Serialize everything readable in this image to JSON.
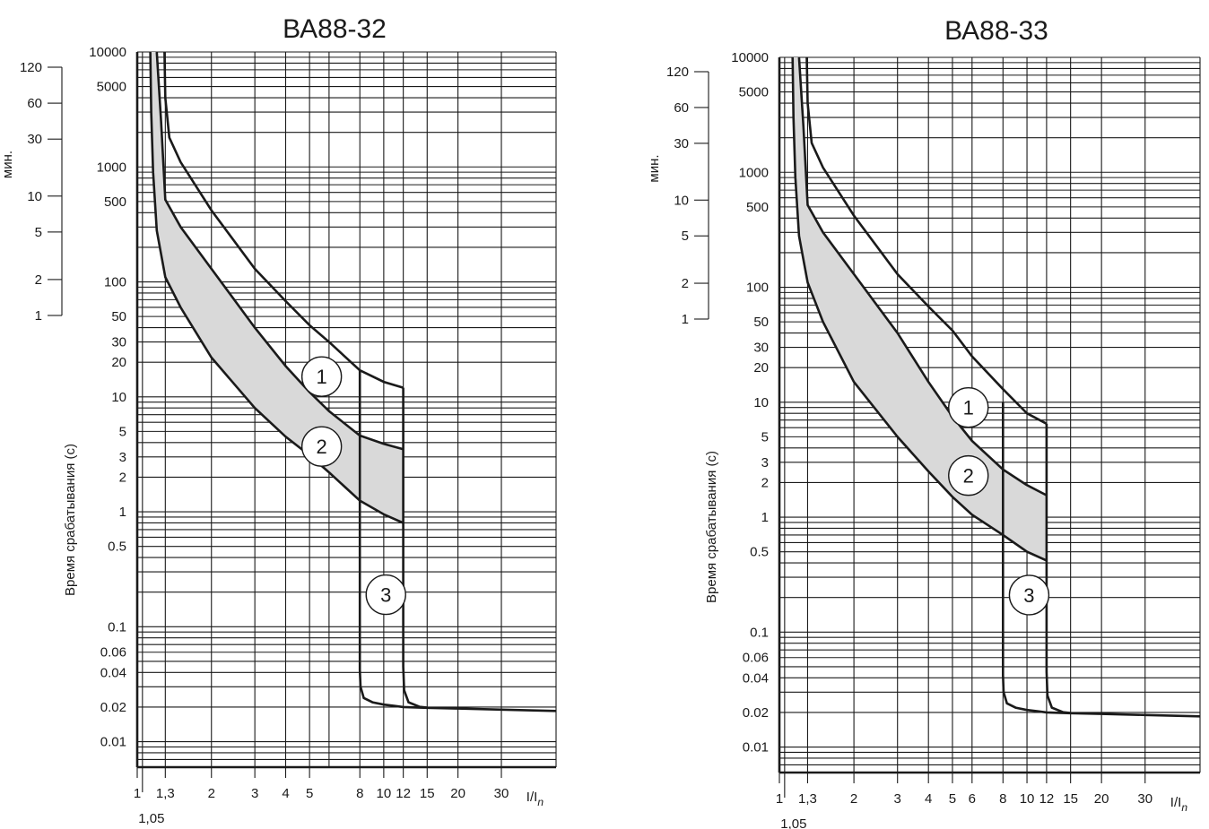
{
  "chart_data": [
    {
      "type": "line",
      "title": "ВА88-32",
      "ylabel": "Время срабатывания (с)",
      "xlabel": "I/I",
      "xlabel_subscript": "n",
      "x_scale": "log",
      "y_scale": "log",
      "xlim": [
        1,
        50
      ],
      "ylim": [
        0.006,
        10000
      ],
      "x_ticks": [
        {
          "value": 1,
          "label": "1"
        },
        {
          "value": 1.3,
          "label": "1,3"
        },
        {
          "value": 2,
          "label": "2"
        },
        {
          "value": 3,
          "label": "3"
        },
        {
          "value": 4,
          "label": "4"
        },
        {
          "value": 5,
          "label": "5"
        },
        {
          "value": 8,
          "label": "8"
        },
        {
          "value": 10,
          "label": "10"
        },
        {
          "value": 12,
          "label": "12"
        },
        {
          "value": 15,
          "label": "15"
        },
        {
          "value": 20,
          "label": "20"
        },
        {
          "value": 30,
          "label": "30"
        }
      ],
      "x_extra_tick": {
        "value": 1.05,
        "label": "1,05"
      },
      "y_ticks": [
        {
          "value": 10000,
          "label": "10000"
        },
        {
          "value": 5000,
          "label": "5000"
        },
        {
          "value": 1000,
          "label": "1000"
        },
        {
          "value": 500,
          "label": "500"
        },
        {
          "value": 100,
          "label": "100"
        },
        {
          "value": 50,
          "label": "50"
        },
        {
          "value": 30,
          "label": "30"
        },
        {
          "value": 20,
          "label": "20"
        },
        {
          "value": 10,
          "label": "10"
        },
        {
          "value": 5,
          "label": "5"
        },
        {
          "value": 3,
          "label": "3"
        },
        {
          "value": 2,
          "label": "2"
        },
        {
          "value": 1,
          "label": "1"
        },
        {
          "value": 0.5,
          "label": "0.5"
        },
        {
          "value": 0.1,
          "label": "0.1"
        },
        {
          "value": 0.06,
          "label": "0.06"
        },
        {
          "value": 0.04,
          "label": "0.04"
        },
        {
          "value": 0.02,
          "label": "0.02"
        },
        {
          "value": 0.01,
          "label": "0.01"
        }
      ],
      "minutes_axis": {
        "label": "мин.",
        "ticks": [
          {
            "minutes": 120,
            "label": "120"
          },
          {
            "minutes": 60,
            "label": "60"
          },
          {
            "minutes": 30,
            "label": "30"
          },
          {
            "minutes": 10,
            "label": "10"
          },
          {
            "minutes": 5,
            "label": "5"
          },
          {
            "minutes": 2,
            "label": "2"
          },
          {
            "minutes": 1,
            "label": "1"
          }
        ]
      },
      "grid": true,
      "series": [
        {
          "label": "1",
          "x": [
            1.29,
            1.3,
            1.35,
            1.5,
            2,
            3,
            4,
            5,
            6,
            8,
            10,
            12
          ],
          "y": [
            10000,
            4000,
            1800,
            1100,
            420,
            130,
            68,
            42,
            30,
            17,
            13.5,
            12
          ]
        },
        {
          "label": "2",
          "x": [
            1.2,
            1.25,
            1.3,
            1.5,
            2,
            3,
            4,
            5,
            6,
            8,
            10,
            12
          ],
          "y": [
            10000,
            2500,
            520,
            300,
            130,
            40,
            18.5,
            11,
            7.5,
            4.6,
            3.9,
            3.5
          ]
        },
        {
          "label": "3",
          "x": [
            1.13,
            1.14,
            1.16,
            1.2,
            1.3,
            1.5,
            2,
            3,
            4,
            5,
            6,
            8,
            10,
            12
          ],
          "y": [
            10000,
            3000,
            900,
            280,
            110,
            60,
            22,
            8,
            4.5,
            3.1,
            2.2,
            1.25,
            0.95,
            0.8
          ]
        },
        {
          "label": "instant-8",
          "x": [
            8,
            8,
            8.05,
            8.3,
            9,
            10,
            11,
            12,
            15,
            20,
            30,
            50
          ],
          "y": [
            17,
            0.042,
            0.03,
            0.024,
            0.022,
            0.021,
            0.0205,
            0.02,
            0.0197,
            0.0194,
            0.019,
            0.0185
          ]
        },
        {
          "label": "instant-12",
          "x": [
            12,
            12,
            12.1,
            12.6,
            14,
            15
          ],
          "y": [
            12,
            0.045,
            0.028,
            0.022,
            0.0201,
            0.0198
          ]
        }
      ],
      "shaded_band": "between series 2 and series 3",
      "annotations": [
        {
          "text": "1",
          "x": 5.6,
          "y": 15
        },
        {
          "text": "2",
          "x": 5.6,
          "y": 3.7
        },
        {
          "text": "3",
          "x": 10.2,
          "y": 0.19
        }
      ]
    },
    {
      "type": "line",
      "title": "ВА88-33",
      "ylabel": "Время срабатывания (с)",
      "xlabel": "I/I",
      "xlabel_subscript": "n",
      "x_scale": "log",
      "y_scale": "log",
      "xlim": [
        1,
        50
      ],
      "ylim": [
        0.006,
        10000
      ],
      "x_ticks": [
        {
          "value": 1,
          "label": "1"
        },
        {
          "value": 1.3,
          "label": "1,3"
        },
        {
          "value": 2,
          "label": "2"
        },
        {
          "value": 3,
          "label": "3"
        },
        {
          "value": 4,
          "label": "4"
        },
        {
          "value": 5,
          "label": "5"
        },
        {
          "value": 6,
          "label": "6"
        },
        {
          "value": 8,
          "label": "8"
        },
        {
          "value": 10,
          "label": "10"
        },
        {
          "value": 12,
          "label": "12"
        },
        {
          "value": 15,
          "label": "15"
        },
        {
          "value": 20,
          "label": "20"
        },
        {
          "value": 30,
          "label": "30"
        }
      ],
      "x_extra_tick": {
        "value": 1.05,
        "label": "1,05"
      },
      "y_ticks": [
        {
          "value": 10000,
          "label": "10000"
        },
        {
          "value": 5000,
          "label": "5000"
        },
        {
          "value": 1000,
          "label": "1000"
        },
        {
          "value": 500,
          "label": "500"
        },
        {
          "value": 100,
          "label": "100"
        },
        {
          "value": 50,
          "label": "50"
        },
        {
          "value": 30,
          "label": "30"
        },
        {
          "value": 20,
          "label": "20"
        },
        {
          "value": 10,
          "label": "10"
        },
        {
          "value": 5,
          "label": "5"
        },
        {
          "value": 3,
          "label": "3"
        },
        {
          "value": 2,
          "label": "2"
        },
        {
          "value": 1,
          "label": "1"
        },
        {
          "value": 0.5,
          "label": "0.5"
        },
        {
          "value": 0.1,
          "label": "0.1"
        },
        {
          "value": 0.06,
          "label": "0.06"
        },
        {
          "value": 0.04,
          "label": "0.04"
        },
        {
          "value": 0.02,
          "label": "0.02"
        },
        {
          "value": 0.01,
          "label": "0.01"
        }
      ],
      "minutes_axis": {
        "label": "мин.",
        "ticks": [
          {
            "minutes": 120,
            "label": "120"
          },
          {
            "minutes": 60,
            "label": "60"
          },
          {
            "minutes": 30,
            "label": "30"
          },
          {
            "minutes": 10,
            "label": "10"
          },
          {
            "minutes": 5,
            "label": "5"
          },
          {
            "minutes": 2,
            "label": "2"
          },
          {
            "minutes": 1,
            "label": "1"
          }
        ]
      },
      "grid": true,
      "series": [
        {
          "label": "1",
          "x": [
            1.29,
            1.3,
            1.35,
            1.5,
            2,
            3,
            4,
            5,
            6,
            8,
            10,
            12
          ],
          "y": [
            10000,
            4000,
            1800,
            1100,
            420,
            130,
            68,
            42,
            25,
            13,
            8,
            6.5
          ]
        },
        {
          "label": "2",
          "x": [
            1.2,
            1.25,
            1.3,
            1.5,
            2,
            3,
            4,
            5,
            6,
            8,
            10,
            12
          ],
          "y": [
            10000,
            2500,
            520,
            300,
            130,
            40,
            15,
            7.5,
            4.6,
            2.6,
            1.9,
            1.55
          ]
        },
        {
          "label": "3",
          "x": [
            1.13,
            1.14,
            1.16,
            1.2,
            1.3,
            1.5,
            2,
            3,
            4,
            5,
            6,
            8,
            10,
            12
          ],
          "y": [
            10000,
            3000,
            900,
            280,
            110,
            50,
            15,
            5,
            2.5,
            1.5,
            1.05,
            0.7,
            0.5,
            0.42
          ]
        },
        {
          "label": "instant-8",
          "x": [
            8,
            8,
            8.05,
            8.3,
            9,
            10,
            11,
            12,
            15,
            20,
            30,
            50
          ],
          "y": [
            10,
            0.042,
            0.03,
            0.024,
            0.022,
            0.021,
            0.0205,
            0.02,
            0.0197,
            0.0194,
            0.019,
            0.0185
          ]
        },
        {
          "label": "instant-12",
          "x": [
            12,
            12,
            12.1,
            12.6,
            14,
            15
          ],
          "y": [
            6.5,
            0.045,
            0.028,
            0.022,
            0.0201,
            0.0198
          ]
        }
      ],
      "shaded_band": "between series 2 and series 3",
      "annotations": [
        {
          "text": "1",
          "x": 5.8,
          "y": 9
        },
        {
          "text": "2",
          "x": 5.8,
          "y": 2.3
        },
        {
          "text": "3",
          "x": 10.2,
          "y": 0.21
        }
      ]
    }
  ]
}
